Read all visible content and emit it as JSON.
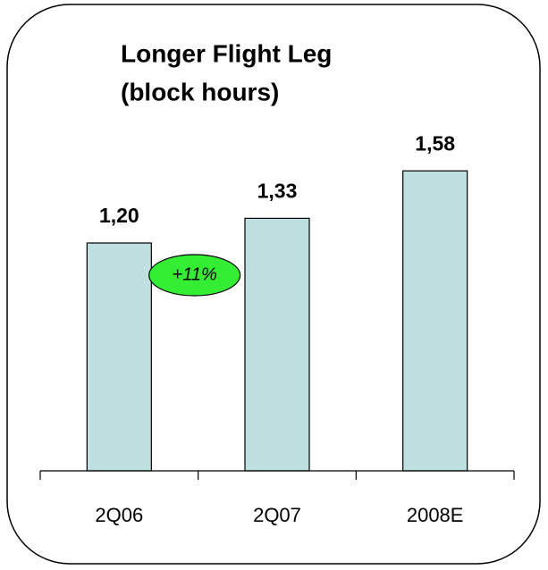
{
  "chart_data": {
    "type": "bar",
    "title": [
      "Longer Flight Leg",
      "(block hours)"
    ],
    "categories": [
      "2Q06",
      "2Q07",
      "2008E"
    ],
    "values": [
      1.2,
      1.33,
      1.58
    ],
    "value_labels": [
      "1,20",
      "1,33",
      "1,58"
    ],
    "color": "#bfe0e0",
    "annotation": {
      "text": "+11%",
      "color": "#33ee33"
    }
  }
}
